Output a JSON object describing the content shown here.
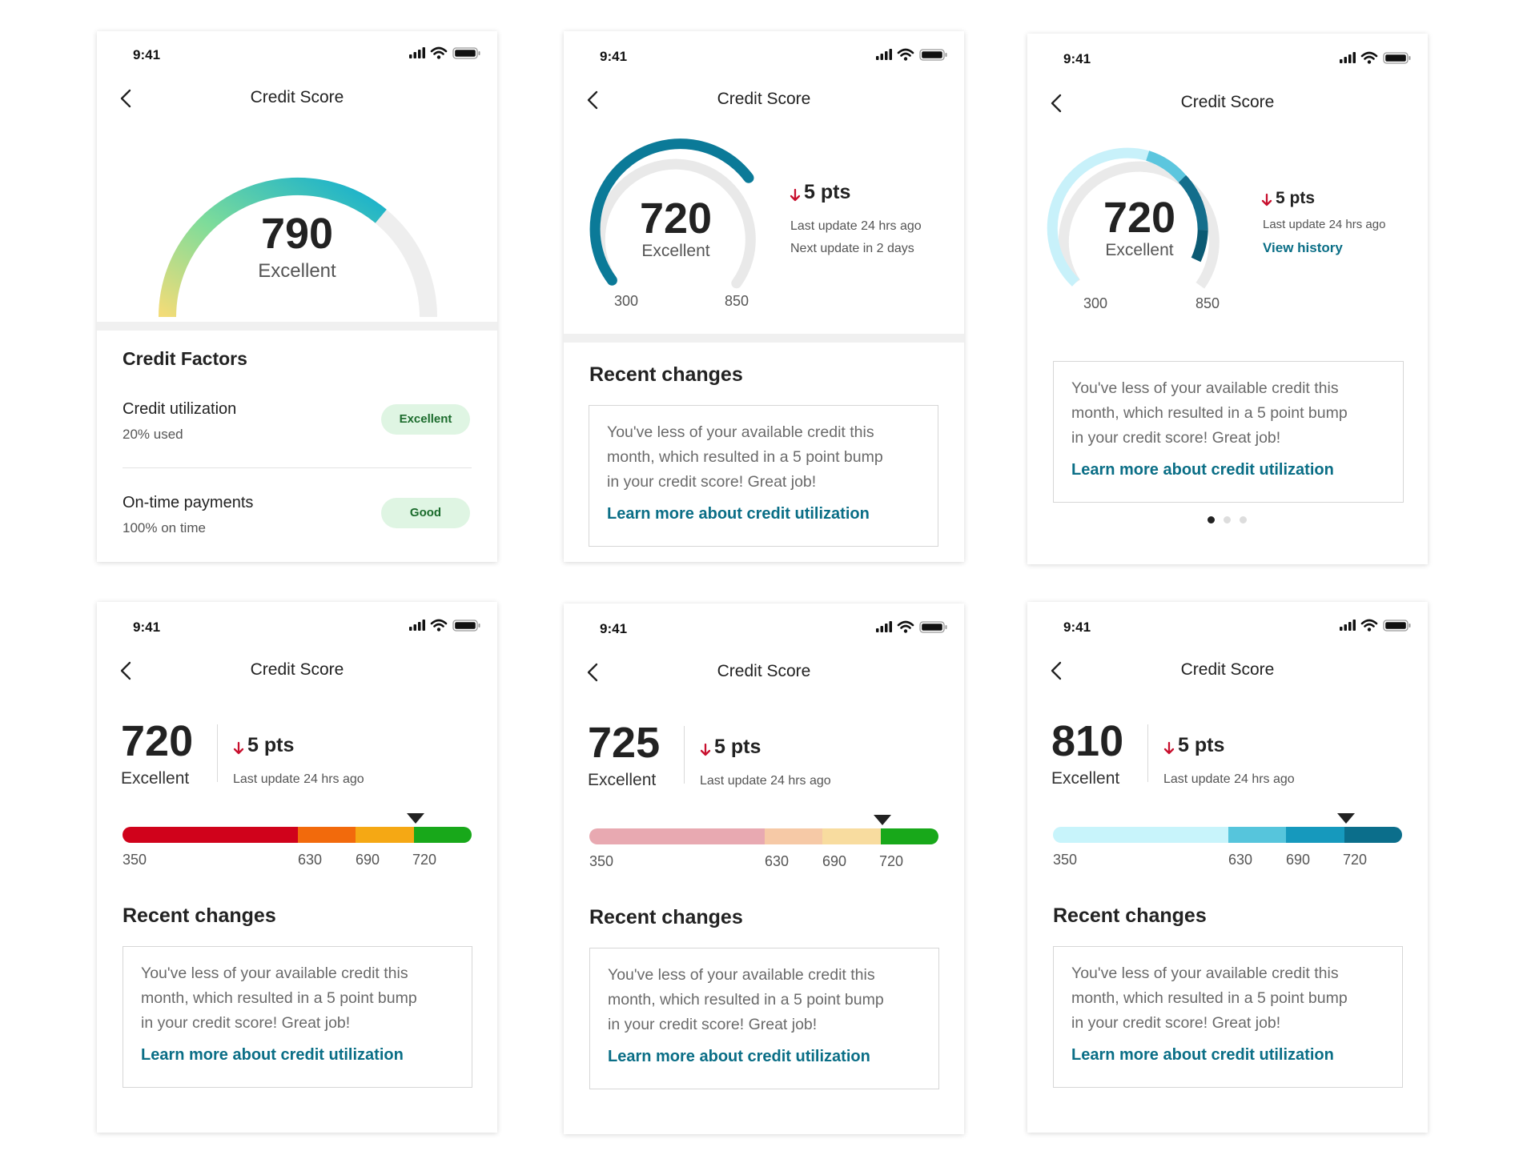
{
  "status_time": "9:41",
  "screen_title": "Credit Score",
  "rating_label": "Excellent",
  "screen1": {
    "score": "790",
    "section_title": "Credit Factors",
    "factors": [
      {
        "name": "Credit utilization",
        "detail": "20% used",
        "badge": "Excellent"
      },
      {
        "name": "On-time payments",
        "detail": "100% on time",
        "badge": "Good"
      }
    ]
  },
  "screen2": {
    "score": "720",
    "change": "5 pts",
    "last_update": "Last update 24 hrs ago",
    "next_update": "Next update in 2 days",
    "min": "300",
    "max": "850"
  },
  "screen3": {
    "score": "720",
    "change": "5 pts",
    "last_update": "Last update 24 hrs ago",
    "history_link": "View history",
    "min": "300",
    "max": "850"
  },
  "bar_screens": [
    {
      "score": "720",
      "change": "5 pts",
      "last_update": "Last update 24 hrs ago",
      "ticks": [
        "350",
        "630",
        "690",
        "720"
      ],
      "colors": [
        "#d0021b",
        "#f26a0c",
        "#f5a814",
        "#18a81a"
      ]
    },
    {
      "score": "725",
      "change": "5 pts",
      "last_update": "Last update 24 hrs ago",
      "ticks": [
        "350",
        "630",
        "690",
        "720"
      ],
      "colors": [
        "#e8a9b1",
        "#f6c9a6",
        "#f8dc9f",
        "#18a81a"
      ]
    },
    {
      "score": "810",
      "change": "5 pts",
      "last_update": "Last update 24 hrs ago",
      "ticks": [
        "350",
        "630",
        "690",
        "720"
      ],
      "colors": [
        "#c8f4fb",
        "#56c5dc",
        "#1699bd",
        "#0b6e8b"
      ]
    }
  ],
  "recent_changes": {
    "title": "Recent changes",
    "line1": "You've less of your available credit this",
    "line2": "month, which resulted in a 5 point bump",
    "line3": "in your credit score! Great job!",
    "link": "Learn more about credit utilization"
  },
  "carousel": {
    "pages": 3,
    "active": 0
  },
  "icons": {
    "back": "chevron-left-icon",
    "down": "arrow-down-icon",
    "signal": "signal-icon",
    "wifi": "wifi-icon",
    "battery": "battery-icon"
  }
}
